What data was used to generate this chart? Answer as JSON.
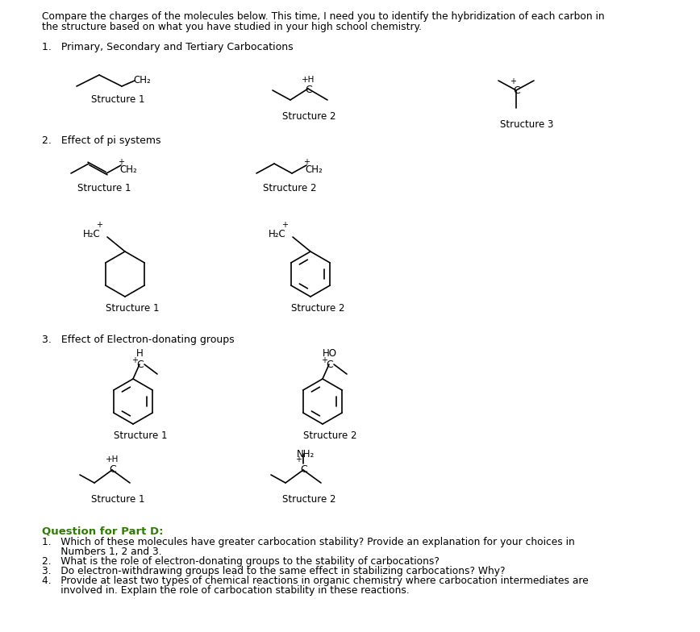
{
  "bg_color": "#ffffff",
  "text_color": "#000000",
  "green_color": "#2e7d00",
  "header_line1": "Compare the charges of the molecules below. This time, I need you to identify the hybridization of each carbon in",
  "header_line2": "the structure based on what you have studied in your high school chemistry.",
  "s1_title": "1.   Primary, Secondary and Tertiary Carbocations",
  "s2_title": "2.   Effect of pi systems",
  "s3_title": "3.   Effect of Electron-donating groups",
  "q_title": "Question for Part D:",
  "q1a": "1.   Which of these molecules have greater carbocation stability? Provide an explanation for your choices in",
  "q1b": "      Numbers 1, 2 and 3.",
  "q2": "2.   What is the role of electron-donating groups to the stability of carbocations?",
  "q3": "3.   Do electron-withdrawing groups lead to the same effect in stabilizing carbocations? Why?",
  "q4a": "4.   Provide at least two types of chemical reactions in organic chemistry where carbocation intermediates are",
  "q4b": "      involved in. Explain the role of carbocation stability in these reactions."
}
